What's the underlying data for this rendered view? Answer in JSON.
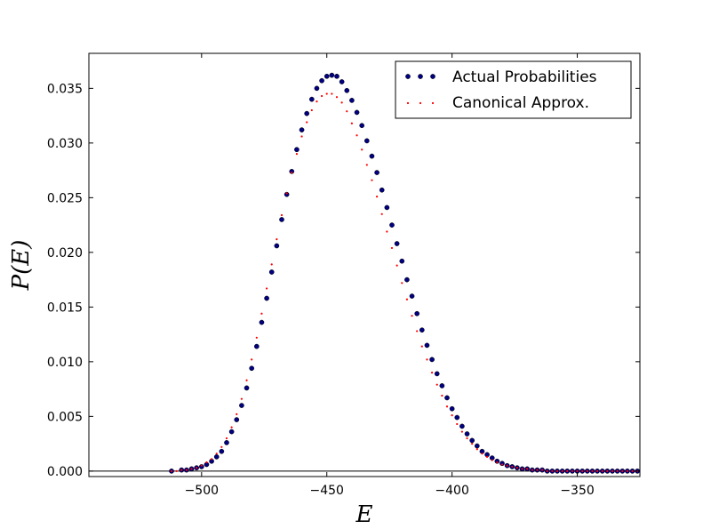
{
  "chart_data": {
    "type": "scatter",
    "xlabel": "E",
    "ylabel": "P(E)",
    "xlim": [
      -545,
      -325
    ],
    "ylim": [
      -0.0005,
      0.0382
    ],
    "xticks": [
      -500,
      -450,
      -400,
      -350
    ],
    "yticks": [
      0.0,
      0.005,
      0.01,
      0.015,
      0.02,
      0.025,
      0.03,
      0.035
    ],
    "xtick_labels": [
      "−500",
      "−450",
      "−400",
      "−350"
    ],
    "ytick_labels": [
      "0.000",
      "0.005",
      "0.010",
      "0.015",
      "0.020",
      "0.025",
      "0.030",
      "0.035"
    ],
    "grid": false,
    "legend_position": "top-right",
    "series": [
      {
        "name": "Actual Probabilities",
        "color": "#000080",
        "marker": "circle",
        "x": [
          -512,
          -508,
          -506,
          -504,
          -502,
          -500,
          -498,
          -496,
          -494,
          -492,
          -490,
          -488,
          -486,
          -484,
          -482,
          -480,
          -478,
          -476,
          -474,
          -472,
          -470,
          -468,
          -466,
          -464,
          -462,
          -460,
          -458,
          -456,
          -454,
          -452,
          -450,
          -448,
          -446,
          -444,
          -442,
          -440,
          -438,
          -436,
          -434,
          -432,
          -430,
          -428,
          -426,
          -424,
          -422,
          -420,
          -418,
          -416,
          -414,
          -412,
          -410,
          -408,
          -406,
          -404,
          -402,
          -400,
          -398,
          -396,
          -394,
          -392,
          -390,
          -388,
          -386,
          -384,
          -382,
          -380,
          -378,
          -376,
          -374,
          -372,
          -370,
          -368,
          -366,
          -364,
          -362,
          -360,
          -358,
          -356,
          -354,
          -352,
          -350,
          -348,
          -346,
          -344,
          -342,
          -340,
          -338,
          -336,
          -334,
          -332,
          -330,
          -328,
          -326
        ],
        "y": [
          0.0,
          0.0001,
          0.0001,
          0.0002,
          0.0003,
          0.0004,
          0.0006,
          0.0009,
          0.0013,
          0.0018,
          0.0026,
          0.0036,
          0.0047,
          0.006,
          0.0076,
          0.0094,
          0.0114,
          0.0136,
          0.0158,
          0.0182,
          0.0206,
          0.023,
          0.0253,
          0.0274,
          0.0294,
          0.0312,
          0.0327,
          0.034,
          0.035,
          0.0357,
          0.0361,
          0.0362,
          0.0361,
          0.0356,
          0.0348,
          0.0339,
          0.0328,
          0.0316,
          0.0302,
          0.0288,
          0.0273,
          0.0257,
          0.0241,
          0.0225,
          0.0208,
          0.0192,
          0.0175,
          0.016,
          0.0144,
          0.0129,
          0.0115,
          0.0102,
          0.0089,
          0.0078,
          0.0067,
          0.0057,
          0.0049,
          0.0041,
          0.0034,
          0.0028,
          0.0023,
          0.0018,
          0.0015,
          0.0012,
          0.0009,
          0.0007,
          0.0005,
          0.0004,
          0.0003,
          0.0002,
          0.0002,
          0.0001,
          0.0001,
          0.0001,
          0.0,
          0.0,
          0.0,
          0.0,
          0.0,
          0.0,
          0.0,
          0.0,
          0.0,
          0.0,
          0.0,
          0.0,
          0.0,
          0.0,
          0.0,
          0.0,
          0.0,
          0.0,
          0.0
        ]
      },
      {
        "name": "Canonical Approx.",
        "color": "#ff0000",
        "marker": "dot",
        "x": [
          -512,
          -510,
          -508,
          -506,
          -504,
          -502,
          -500,
          -498,
          -496,
          -494,
          -492,
          -490,
          -488,
          -486,
          -484,
          -482,
          -480,
          -478,
          -476,
          -474,
          -472,
          -470,
          -468,
          -466,
          -464,
          -462,
          -460,
          -458,
          -456,
          -454,
          -452,
          -450,
          -448,
          -446,
          -444,
          -442,
          -440,
          -438,
          -436,
          -434,
          -432,
          -430,
          -428,
          -426,
          -424,
          -422,
          -420,
          -418,
          -416,
          -414,
          -412,
          -410,
          -408,
          -406,
          -404,
          -402,
          -400,
          -398,
          -396,
          -394,
          -392,
          -390,
          -388,
          -386,
          -384,
          -382,
          -380,
          -378,
          -376,
          -374,
          -372,
          -370,
          -368,
          -366,
          -364,
          -362,
          -360,
          -358,
          -356,
          -354,
          -352,
          -350,
          -348,
          -346,
          -344,
          -342,
          -340,
          -338,
          -336,
          -334,
          -332,
          -330,
          -328,
          -326
        ],
        "y": [
          0.0,
          0.0,
          0.0001,
          0.0001,
          0.0002,
          0.0003,
          0.0005,
          0.0008,
          0.0011,
          0.0016,
          0.0022,
          0.003,
          0.004,
          0.0052,
          0.0066,
          0.0083,
          0.0102,
          0.0122,
          0.0144,
          0.0167,
          0.0189,
          0.0212,
          0.0234,
          0.0254,
          0.0273,
          0.029,
          0.0306,
          0.0319,
          0.033,
          0.0338,
          0.0343,
          0.0345,
          0.0345,
          0.0342,
          0.0337,
          0.0329,
          0.0318,
          0.0307,
          0.0294,
          0.028,
          0.0266,
          0.0251,
          0.0235,
          0.0219,
          0.0204,
          0.0188,
          0.0172,
          0.0157,
          0.0142,
          0.0128,
          0.0114,
          0.0102,
          0.009,
          0.0079,
          0.0069,
          0.0059,
          0.0051,
          0.0043,
          0.0036,
          0.003,
          0.0025,
          0.002,
          0.0016,
          0.0013,
          0.001,
          0.0008,
          0.0006,
          0.0005,
          0.0004,
          0.0003,
          0.0002,
          0.0002,
          0.0001,
          0.0001,
          0.0001,
          0.0,
          0.0,
          0.0,
          0.0,
          0.0,
          0.0,
          0.0,
          0.0,
          0.0,
          0.0,
          0.0,
          0.0,
          0.0,
          0.0,
          0.0,
          0.0,
          0.0,
          0.0,
          0.0
        ]
      }
    ]
  }
}
